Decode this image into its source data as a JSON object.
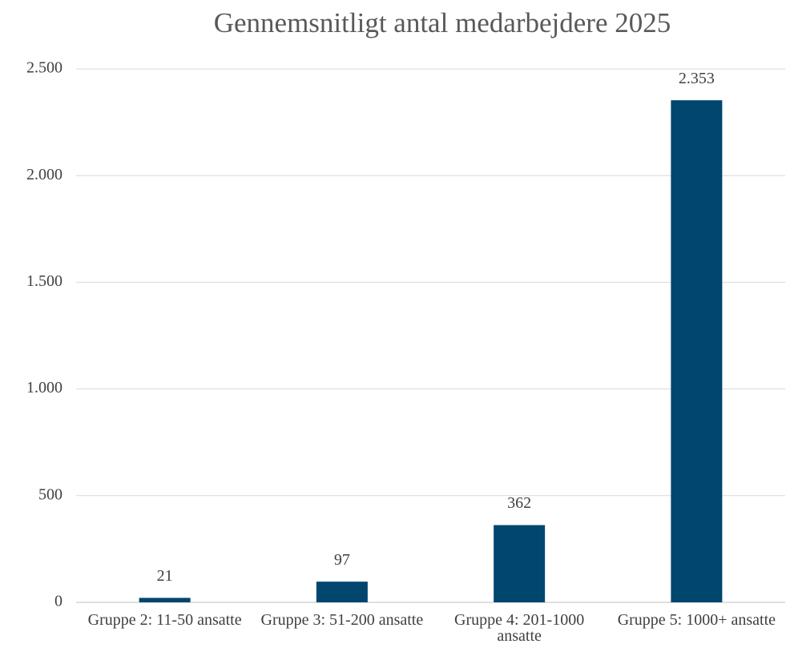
{
  "chart_data": {
    "type": "bar",
    "title": "Gennemsnitligt antal medarbejdere 2025",
    "categories": [
      "Gruppe 2: 11-50 ansatte",
      "Gruppe 3: 51-200 ansatte",
      "Gruppe 4: 201-1000 ansatte",
      "Gruppe 5: 1000+ ansatte"
    ],
    "values": [
      21,
      97,
      362,
      2353
    ],
    "value_labels": [
      "21",
      "97",
      "362",
      "2.353"
    ],
    "color": "#00466e",
    "ylim": [
      0,
      2500
    ],
    "yticks": [
      0,
      500,
      {
        "value": 1000,
        "label": "1.000"
      },
      {
        "value": 1500,
        "label": "1.500"
      },
      {
        "value": 2000,
        "label": "2.000"
      },
      {
        "value": 2500,
        "label": "2.500"
      }
    ],
    "grid": true
  }
}
